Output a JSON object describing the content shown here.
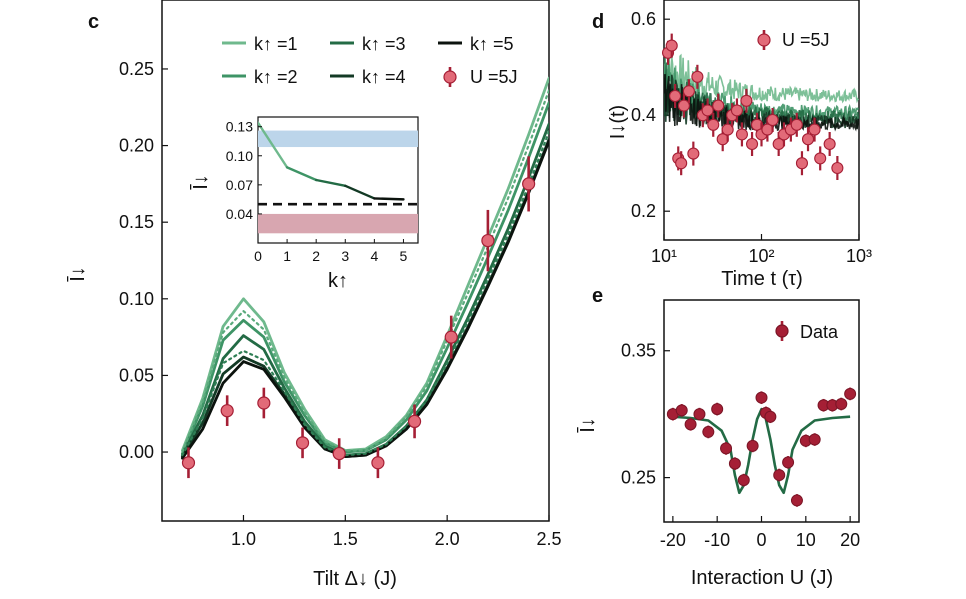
{
  "panels": {
    "c": "c",
    "d": "d",
    "e": "e"
  },
  "chart_data": [
    {
      "id": "c",
      "type": "line",
      "xlabel": "Tilt Δ↓ (J)",
      "ylabel": "Ī↓",
      "xlim": [
        0.6,
        2.5
      ],
      "ylim": [
        -0.045,
        0.295
      ],
      "xticks": [
        "1.0",
        "1.5",
        "2.0",
        "2.5"
      ],
      "yticks": [
        "0.00",
        "0.05",
        "0.10",
        "0.15",
        "0.20",
        "0.25"
      ],
      "x": [
        0.7,
        0.8,
        0.9,
        1.0,
        1.1,
        1.2,
        1.3,
        1.4,
        1.5,
        1.6,
        1.7,
        1.8,
        1.9,
        2.0,
        2.1,
        2.2,
        2.3,
        2.4,
        2.5
      ],
      "series": [
        {
          "name": "k↑=1",
          "values": [
            0.001,
            0.035,
            0.082,
            0.1,
            0.085,
            0.052,
            0.028,
            0.008,
            0.001,
            0.002,
            0.01,
            0.024,
            0.045,
            0.076,
            0.108,
            0.14,
            0.172,
            0.207,
            0.244
          ]
        },
        {
          "name": "k↑=2",
          "values": [
            -0.001,
            0.03,
            0.073,
            0.086,
            0.075,
            0.046,
            0.024,
            0.006,
            0.0,
            0.001,
            0.008,
            0.021,
            0.04,
            0.068,
            0.097,
            0.127,
            0.158,
            0.192,
            0.228
          ]
        },
        {
          "name": "k↑=3",
          "values": [
            -0.002,
            0.024,
            0.061,
            0.076,
            0.067,
            0.042,
            0.02,
            0.004,
            -0.002,
            -0.001,
            0.005,
            0.017,
            0.034,
            0.06,
            0.087,
            0.116,
            0.146,
            0.179,
            0.214
          ]
        },
        {
          "name": "k↑=4",
          "values": [
            -0.003,
            0.019,
            0.051,
            0.062,
            0.056,
            0.038,
            0.017,
            0.002,
            -0.003,
            -0.002,
            0.004,
            0.015,
            0.031,
            0.055,
            0.081,
            0.109,
            0.138,
            0.17,
            0.204
          ]
        },
        {
          "name": "k↑=5",
          "values": [
            -0.004,
            0.015,
            0.045,
            0.059,
            0.054,
            0.036,
            0.016,
            0.002,
            -0.003,
            -0.002,
            0.004,
            0.015,
            0.031,
            0.054,
            0.08,
            0.108,
            0.137,
            0.169,
            0.203
          ]
        },
        {
          "name": "k↑=1 (dotted)",
          "values": [
            0.0,
            0.033,
            0.078,
            0.092,
            0.08,
            0.049,
            0.026,
            0.007,
            0.001,
            0.001,
            0.009,
            0.023,
            0.043,
            0.073,
            0.103,
            0.134,
            0.166,
            0.2,
            0.236
          ]
        },
        {
          "name": "k↑=2 (dotted)",
          "values": [
            -0.002,
            0.022,
            0.058,
            0.066,
            0.06,
            0.04,
            0.018,
            0.003,
            -0.002,
            -0.001,
            0.005,
            0.017,
            0.034,
            0.058,
            0.085,
            0.113,
            0.142,
            0.174,
            0.209
          ]
        }
      ],
      "data_points": {
        "name": "U=5J",
        "x": [
          0.73,
          0.92,
          1.1,
          1.29,
          1.47,
          1.66,
          1.84,
          2.02,
          2.2,
          2.4
        ],
        "y": [
          -0.007,
          0.027,
          0.032,
          0.006,
          -0.001,
          -0.007,
          0.02,
          0.075,
          0.138,
          0.175
        ],
        "err": [
          0.01,
          0.01,
          0.01,
          0.01,
          0.01,
          0.01,
          0.011,
          0.014,
          0.02,
          0.018
        ]
      },
      "legend": [
        {
          "label": "k↑ =1",
          "color": "#6fb98d"
        },
        {
          "label": "k↑ =3",
          "color": "#236b45"
        },
        {
          "label": "k↑ =5",
          "color": "#0c130e"
        },
        {
          "label": "k↑ =2",
          "color": "#3e9466"
        },
        {
          "label": "k↑ =4",
          "color": "#133a25"
        },
        {
          "label": "U =5J",
          "color": "#e26a78"
        }
      ],
      "inset": {
        "type": "line",
        "xlabel": "k↑",
        "ylabel": "Ī↓",
        "xlim": [
          0,
          5.5
        ],
        "ylim": [
          0.01,
          0.14
        ],
        "xticks": [
          "0",
          "1",
          "2",
          "3",
          "4",
          "5"
        ],
        "yticks": [
          "0.04",
          "0.07",
          "0.10",
          "0.13"
        ],
        "x": [
          0,
          1,
          2,
          3,
          4,
          5
        ],
        "values": [
          0.134,
          0.088,
          0.075,
          0.069,
          0.056,
          0.055
        ],
        "dashed_level": 0.05,
        "blue_band": [
          0.109,
          0.126
        ],
        "red_band": [
          0.02,
          0.04
        ]
      }
    },
    {
      "id": "d",
      "type": "line",
      "xlabel": "Time t (τ)",
      "ylabel": "I↓(t)",
      "xscale": "log",
      "xlim": [
        10,
        1000
      ],
      "ylim": [
        0.14,
        0.64
      ],
      "xticks": [
        "10¹",
        "10²",
        "10³"
      ],
      "yticks": [
        "0.2",
        "0.4",
        "0.6"
      ],
      "series": [
        {
          "name": "k↑=1",
          "level": 0.44
        },
        {
          "name": "k↑=2",
          "level": 0.405
        },
        {
          "name": "k↑=3",
          "level": 0.395
        },
        {
          "name": "k↑=4",
          "level": 0.385
        },
        {
          "name": "k↑=5",
          "level": 0.38
        }
      ],
      "data_points": {
        "name": "U=5J",
        "x": [
          11,
          12,
          13,
          14,
          15,
          16,
          18,
          20,
          22,
          25,
          28,
          32,
          36,
          40,
          45,
          50,
          56,
          63,
          70,
          80,
          90,
          100,
          115,
          130,
          150,
          170,
          200,
          230,
          260,
          300,
          350,
          400,
          500,
          600
        ],
        "y": [
          0.53,
          0.545,
          0.44,
          0.31,
          0.3,
          0.42,
          0.45,
          0.32,
          0.48,
          0.4,
          0.41,
          0.38,
          0.42,
          0.35,
          0.37,
          0.4,
          0.41,
          0.36,
          0.43,
          0.34,
          0.38,
          0.36,
          0.37,
          0.39,
          0.34,
          0.36,
          0.37,
          0.38,
          0.3,
          0.35,
          0.37,
          0.31,
          0.34,
          0.29
        ],
        "err": 0.025
      },
      "legend": [
        {
          "label": "U =5J",
          "color": "#e26a78"
        }
      ]
    },
    {
      "id": "e",
      "type": "line",
      "xlabel": "Interaction U (J)",
      "ylabel": "Ī↓",
      "xlim": [
        -22,
        22
      ],
      "ylim": [
        0.215,
        0.39
      ],
      "xticks": [
        "-20",
        "-10",
        "0",
        "10",
        "20"
      ],
      "yticks": [
        "0.25",
        "0.35"
      ],
      "fit_x": [
        -20,
        -16,
        -12,
        -9,
        -7,
        -6,
        -5,
        -4,
        -3,
        -2,
        -1,
        0,
        1,
        2,
        3,
        4,
        5,
        6,
        7,
        9,
        12,
        16,
        20
      ],
      "fit_y": [
        0.298,
        0.297,
        0.295,
        0.287,
        0.272,
        0.252,
        0.238,
        0.244,
        0.26,
        0.28,
        0.296,
        0.304,
        0.296,
        0.28,
        0.26,
        0.244,
        0.238,
        0.252,
        0.272,
        0.287,
        0.295,
        0.297,
        0.298
      ],
      "data_points": {
        "name": "Data",
        "x": [
          -20,
          -18,
          -16,
          -14,
          -12,
          -10,
          -8,
          -6,
          -4,
          -2,
          0,
          1,
          2,
          4,
          6,
          8,
          10,
          12,
          14,
          16,
          18,
          20
        ],
        "y": [
          0.3,
          0.303,
          0.292,
          0.3,
          0.286,
          0.304,
          0.273,
          0.261,
          0.248,
          0.275,
          0.313,
          0.301,
          0.298,
          0.252,
          0.262,
          0.232,
          0.279,
          0.28,
          0.307,
          0.307,
          0.308,
          0.316
        ],
        "err": 0.005
      },
      "legend": [
        {
          "label": "Data",
          "color": "#a51f35"
        }
      ]
    }
  ]
}
